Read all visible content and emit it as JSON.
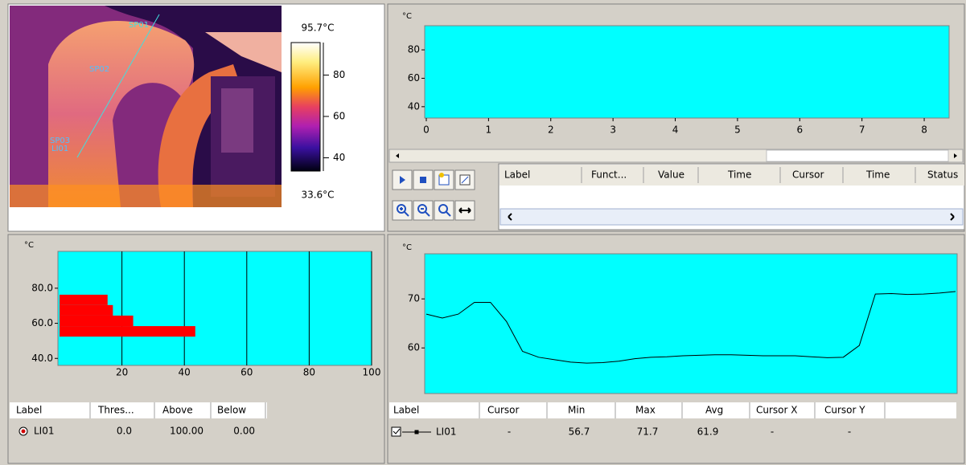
{
  "thermal": {
    "spots": [
      "SP01",
      "SP02",
      "SP03",
      "LI01"
    ],
    "scale": {
      "max_label": "95.7°C",
      "min_label": "33.6°C",
      "ylim": [
        33.6,
        95.7
      ],
      "yticks": [
        40,
        60,
        80
      ]
    }
  },
  "trend": {
    "type": "line",
    "y_unit": "°C",
    "color": "#00ffff",
    "xlim": [
      0,
      8.4
    ],
    "xticks": [
      0,
      1,
      2,
      3,
      4,
      5,
      6,
      7,
      8
    ],
    "ylim": [
      32,
      97
    ],
    "yticks": [
      40,
      60,
      80
    ],
    "table_columns": [
      "Label",
      "Funct...",
      "Value",
      "Time",
      "Cursor",
      "Time",
      "Status"
    ]
  },
  "histogram": {
    "type": "bar",
    "y_unit": "°C",
    "color": "#ff0000",
    "plot_color": "#00ffff",
    "bins": [
      52.4,
      58.4,
      64.4,
      70.4,
      76.3
    ],
    "values": [
      43.5,
      23.6,
      17.1,
      15.4
    ],
    "xlim": [
      0,
      100
    ],
    "xticks": [
      20,
      40,
      60,
      80,
      100
    ],
    "ylim": [
      36,
      101
    ],
    "yticks": [
      {
        "value": 40,
        "label": "40.0"
      },
      {
        "value": 60,
        "label": "60.0"
      },
      {
        "value": 80,
        "label": "80.0"
      }
    ],
    "table_columns": [
      "Label",
      "Thres...",
      "Above",
      "Below"
    ],
    "table_rows": [
      [
        "LI01",
        "0.0",
        "100.00",
        "0.00"
      ]
    ]
  },
  "profile": {
    "type": "line",
    "y_unit": "°C",
    "color": "#000000",
    "plot_color": "#00ffff",
    "values": [
      66.9,
      66.1,
      66.9,
      69.3,
      69.3,
      65.4,
      59.3,
      58.1,
      57.6,
      57.1,
      56.9,
      57.0,
      57.3,
      57.8,
      58.1,
      58.2,
      58.4,
      58.5,
      58.6,
      58.6,
      58.5,
      58.4,
      58.4,
      58.4,
      58.2,
      58.0,
      58.1,
      60.5,
      71.0,
      71.1,
      70.9,
      71.0,
      71.2,
      71.5
    ],
    "ylim": [
      50.7,
      79.2
    ],
    "yticks": [
      60,
      70
    ],
    "table_columns": [
      "Label",
      "Cursor",
      "Min",
      "Max",
      "Avg",
      "Cursor X",
      "Cursor Y"
    ],
    "table_rows": [
      [
        "LI01",
        "-",
        "56.7",
        "71.7",
        "61.9",
        "-",
        "-"
      ]
    ]
  }
}
